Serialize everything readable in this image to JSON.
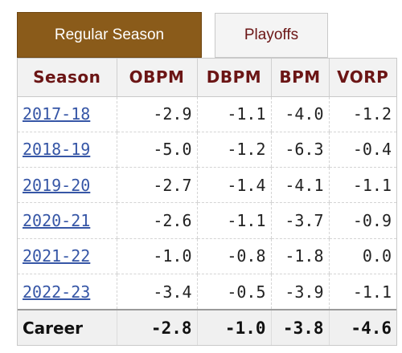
{
  "tabs": {
    "regular_season": "Regular Season",
    "playoffs": "Playoffs"
  },
  "table": {
    "headers": {
      "season": "Season",
      "obpm": "OBPM",
      "dbpm": "DBPM",
      "bpm": "BPM",
      "vorp": "VORP"
    },
    "rows": [
      {
        "season": "2017-18",
        "obpm": "-2.9",
        "dbpm": "-1.1",
        "bpm": "-4.0",
        "vorp": "-1.2"
      },
      {
        "season": "2018-19",
        "obpm": "-5.0",
        "dbpm": "-1.2",
        "bpm": "-6.3",
        "vorp": "-0.4"
      },
      {
        "season": "2019-20",
        "obpm": "-2.7",
        "dbpm": "-1.4",
        "bpm": "-4.1",
        "vorp": "-1.1"
      },
      {
        "season": "2020-21",
        "obpm": "-2.6",
        "dbpm": "-1.1",
        "bpm": "-3.7",
        "vorp": "-0.9"
      },
      {
        "season": "2021-22",
        "obpm": "-1.0",
        "dbpm": "-0.8",
        "bpm": "-1.8",
        "vorp": "0.0"
      },
      {
        "season": "2022-23",
        "obpm": "-3.4",
        "dbpm": "-0.5",
        "bpm": "-3.9",
        "vorp": "-1.1"
      }
    ],
    "career": {
      "label": "Career",
      "obpm": "-2.8",
      "dbpm": "-1.0",
      "bpm": "-3.8",
      "vorp": "-4.6"
    }
  },
  "colors": {
    "active_tab_bg": "#8a5b1a",
    "header_text": "#6b1515",
    "link": "#3656a6"
  }
}
